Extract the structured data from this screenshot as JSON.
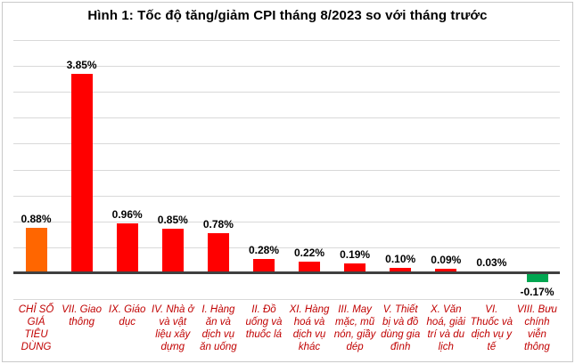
{
  "frame": {
    "background": "#ffffff",
    "border_color": "#c9c9c9"
  },
  "chart_data": {
    "type": "bar",
    "title": "Hình 1: Tốc độ tăng/giảm CPI tháng 8/2023 so với tháng trước",
    "categories": [
      "CHỈ SỐ\nGIÁ\nTIÊU\nDÙNG",
      "VII. Giao\nthông",
      "IX. Giáo\ndục",
      "IV. Nhà ở\nvà vật\nliệu xây\ndựng",
      "I. Hàng\năn và\ndịch vụ\năn uống",
      "II. Đồ\nuống và\nthuốc lá",
      "XI. Hàng\nhoá và\ndịch vụ\nkhác",
      "III. May\nmặc, mũ\nnón, giầy\ndép",
      "V. Thiết\nbị và đồ\ndùng gia\nđình",
      "X. Văn\nhoá, giải\ntrí và du\nlịch",
      "VI.\nThuốc và\ndịch vụ y\ntế",
      "VIII. Bưu\nchính\nviễn\nthông"
    ],
    "values": [
      0.88,
      3.85,
      0.96,
      0.85,
      0.78,
      0.28,
      0.22,
      0.19,
      0.1,
      0.09,
      0.03,
      -0.17
    ],
    "value_labels": [
      "0.88%",
      "3.85%",
      "0.96%",
      "0.85%",
      "0.78%",
      "0.28%",
      "0.22%",
      "0.19%",
      "0.10%",
      "0.09%",
      "0.03%",
      "-0.17%"
    ],
    "bar_colors": [
      "#ff6600",
      "#ff0000",
      "#ff0000",
      "#ff0000",
      "#ff0000",
      "#ff0000",
      "#ff0000",
      "#ff0000",
      "#ff0000",
      "#ff0000",
      "#ff0000",
      "#00a651"
    ],
    "xlabel": "",
    "ylabel": "",
    "ylim": [
      -0.5,
      4.5
    ],
    "gridline_step": 0.5,
    "grid": true,
    "legend": false,
    "styles": {
      "grid_color": "#d9d9d9",
      "axis_color": "#404040",
      "category_label_color": "#c00000",
      "value_label_color": "#000000"
    }
  }
}
